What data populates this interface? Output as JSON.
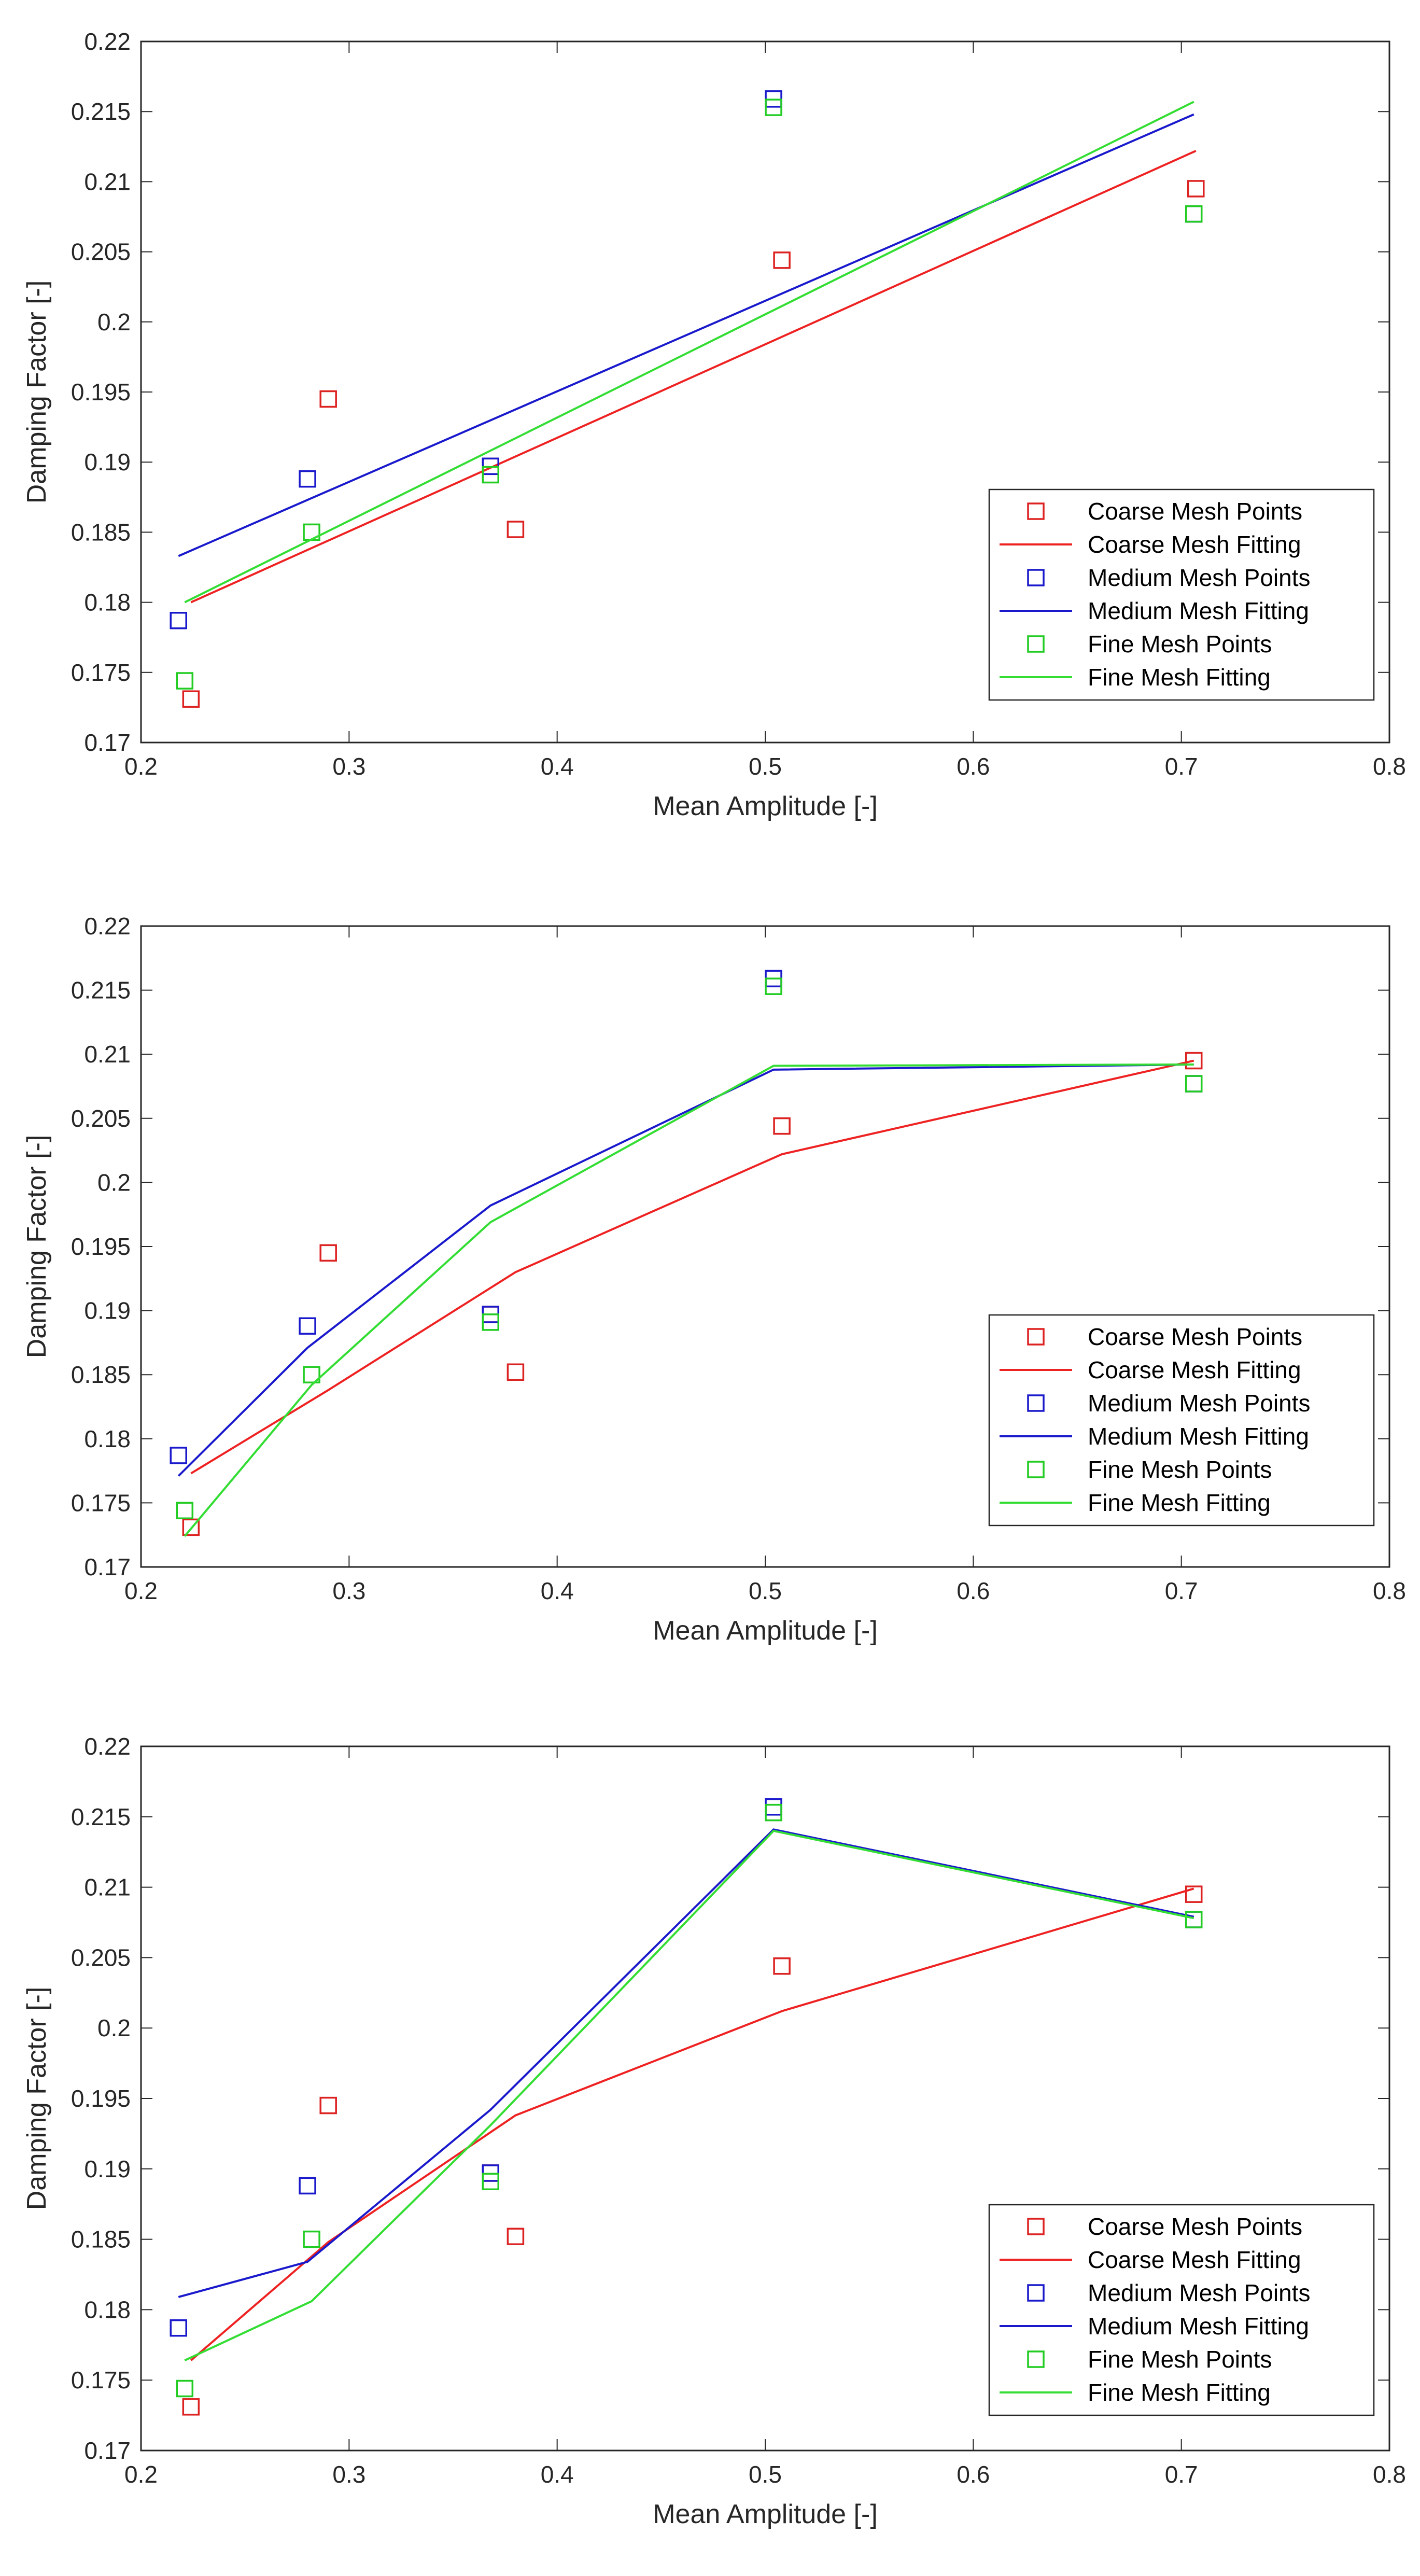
{
  "chart_data": [
    {
      "type": "scatter",
      "xlabel": "Mean Amplitude [-]",
      "ylabel": "Damping Factor [-]",
      "xlim": [
        0.2,
        0.8
      ],
      "ylim": [
        0.17,
        0.22
      ],
      "xticks": [
        "0.2",
        "0.3",
        "0.4",
        "0.5",
        "0.6",
        "0.7",
        "0.8"
      ],
      "yticks": [
        "0.17",
        "0.175",
        "0.18",
        "0.185",
        "0.19",
        "0.195",
        "0.2",
        "0.205",
        "0.21",
        "0.215",
        "0.22"
      ],
      "legend_position": "bottom-right",
      "series": [
        {
          "name": "Coarse Mesh Points",
          "kind": "points",
          "color": "#dd2222",
          "x": [
            0.224,
            0.29,
            0.368,
            0.38,
            0.508,
            0.707
          ],
          "y": [
            0.1731,
            0.1945,
            0.1897,
            0.1852,
            0.2044,
            0.2095
          ]
        },
        {
          "name": "Coarse Mesh Fitting",
          "kind": "line",
          "color": "#ee2222",
          "x": [
            0.224,
            0.707
          ],
          "y": [
            0.18,
            0.2122
          ]
        },
        {
          "name": "Medium Mesh Points",
          "kind": "points",
          "color": "#1a1acc",
          "x": [
            0.218,
            0.28,
            0.368,
            0.504,
            0.706
          ],
          "y": [
            0.1787,
            0.1888,
            0.1897,
            0.2159,
            0.2077
          ]
        },
        {
          "name": "Medium Mesh Fitting",
          "kind": "line",
          "color": "#1a1acc",
          "x": [
            0.218,
            0.706
          ],
          "y": [
            0.1833,
            0.2148
          ]
        },
        {
          "name": "Fine Mesh Points",
          "kind": "points",
          "color": "#22cc22",
          "x": [
            0.221,
            0.282,
            0.368,
            0.504,
            0.706
          ],
          "y": [
            0.1744,
            0.185,
            0.1891,
            0.2153,
            0.2077
          ]
        },
        {
          "name": "Fine Mesh Fitting",
          "kind": "line",
          "color": "#33dd33",
          "x": [
            0.221,
            0.706
          ],
          "y": [
            0.18,
            0.2157
          ]
        }
      ]
    },
    {
      "type": "scatter",
      "xlabel": "Mean Amplitude [-]",
      "ylabel": "Damping Factor [-]",
      "xlim": [
        0.2,
        0.8
      ],
      "ylim": [
        0.17,
        0.22
      ],
      "xticks": [
        "0.2",
        "0.3",
        "0.4",
        "0.5",
        "0.6",
        "0.7",
        "0.8"
      ],
      "yticks": [
        "0.17",
        "0.175",
        "0.18",
        "0.185",
        "0.19",
        "0.195",
        "0.2",
        "0.205",
        "0.21",
        "0.215",
        "0.22"
      ],
      "legend_position": "bottom-right",
      "series": [
        {
          "name": "Coarse Mesh Points",
          "kind": "points",
          "color": "#dd2222",
          "x": [
            0.224,
            0.29,
            0.368,
            0.38,
            0.508,
            0.706
          ],
          "y": [
            0.1731,
            0.1945,
            0.1897,
            0.1852,
            0.2044,
            0.2095
          ]
        },
        {
          "name": "Coarse Mesh Fitting",
          "kind": "line",
          "color": "#ee2222",
          "x": [
            0.224,
            0.29,
            0.38,
            0.508,
            0.706
          ],
          "y": [
            0.1773,
            0.1838,
            0.193,
            0.2022,
            0.2095
          ]
        },
        {
          "name": "Medium Mesh Points",
          "kind": "points",
          "color": "#1a1acc",
          "x": [
            0.218,
            0.28,
            0.368,
            0.504,
            0.706
          ],
          "y": [
            0.1787,
            0.1888,
            0.1897,
            0.2159,
            0.2077
          ]
        },
        {
          "name": "Medium Mesh Fitting",
          "kind": "line",
          "color": "#1a1acc",
          "x": [
            0.218,
            0.28,
            0.368,
            0.504,
            0.706
          ],
          "y": [
            0.1771,
            0.1871,
            0.1982,
            0.2088,
            0.2092
          ]
        },
        {
          "name": "Fine Mesh Points",
          "kind": "points",
          "color": "#22cc22",
          "x": [
            0.221,
            0.282,
            0.368,
            0.504,
            0.706
          ],
          "y": [
            0.1744,
            0.185,
            0.1891,
            0.2153,
            0.2077
          ]
        },
        {
          "name": "Fine Mesh Fitting",
          "kind": "line",
          "color": "#33dd33",
          "x": [
            0.221,
            0.282,
            0.368,
            0.504,
            0.706
          ],
          "y": [
            0.1724,
            0.1842,
            0.1969,
            0.2091,
            0.2092
          ]
        }
      ]
    },
    {
      "type": "scatter",
      "xlabel": "Mean Amplitude [-]",
      "ylabel": "Damping Factor [-]",
      "xlim": [
        0.2,
        0.8
      ],
      "ylim": [
        0.17,
        0.22
      ],
      "xticks": [
        "0.2",
        "0.3",
        "0.4",
        "0.5",
        "0.6",
        "0.7",
        "0.8"
      ],
      "yticks": [
        "0.17",
        "0.175",
        "0.18",
        "0.185",
        "0.19",
        "0.195",
        "0.2",
        "0.205",
        "0.21",
        "0.215",
        "0.22"
      ],
      "legend_position": "bottom-right",
      "series": [
        {
          "name": "Coarse Mesh Points",
          "kind": "points",
          "color": "#dd2222",
          "x": [
            0.224,
            0.29,
            0.368,
            0.38,
            0.508,
            0.706
          ],
          "y": [
            0.1731,
            0.1945,
            0.1897,
            0.1852,
            0.2044,
            0.2095
          ]
        },
        {
          "name": "Coarse Mesh Fitting",
          "kind": "line",
          "color": "#ee2222",
          "x": [
            0.224,
            0.29,
            0.38,
            0.508,
            0.706
          ],
          "y": [
            0.1764,
            0.1848,
            0.1938,
            0.2012,
            0.2099
          ]
        },
        {
          "name": "Medium Mesh Points",
          "kind": "points",
          "color": "#1a1acc",
          "x": [
            0.218,
            0.28,
            0.368,
            0.504,
            0.706
          ],
          "y": [
            0.1787,
            0.1888,
            0.1897,
            0.2157,
            0.2077
          ]
        },
        {
          "name": "Medium Mesh Fitting",
          "kind": "line",
          "color": "#1a1acc",
          "x": [
            0.218,
            0.28,
            0.368,
            0.504,
            0.706
          ],
          "y": [
            0.1809,
            0.1834,
            0.1942,
            0.2141,
            0.2079
          ]
        },
        {
          "name": "Fine Mesh Points",
          "kind": "points",
          "color": "#22cc22",
          "x": [
            0.221,
            0.282,
            0.368,
            0.504,
            0.706
          ],
          "y": [
            0.1744,
            0.185,
            0.1891,
            0.2153,
            0.2077
          ]
        },
        {
          "name": "Fine Mesh Fitting",
          "kind": "line",
          "color": "#33dd33",
          "x": [
            0.221,
            0.282,
            0.368,
            0.504,
            0.706
          ],
          "y": [
            0.1764,
            0.1806,
            0.1931,
            0.214,
            0.2078
          ]
        }
      ]
    }
  ]
}
